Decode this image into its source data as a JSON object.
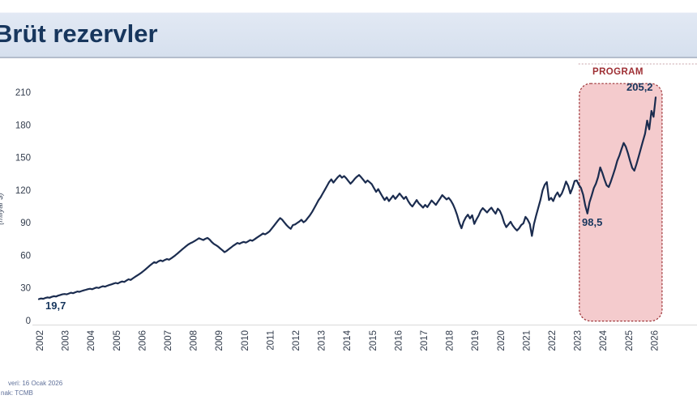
{
  "header": {
    "title": "Brüt rezervler"
  },
  "annotations": {
    "start_value": "19,7",
    "dip_value": "98,5",
    "last_value": "205,2",
    "program_label": "PROGRAM"
  },
  "footer": {
    "line1": "veri: 16 Ocak 2026",
    "line2": "nak: TCMB"
  },
  "colors": {
    "navy": "#17365d",
    "line": "#1b2c4f",
    "region_fill": "#f4cbcd",
    "region_border": "#9c3236",
    "program_text": "#9e2f34",
    "axis_text": "#333d4d",
    "axis_line": "#d9d9d9",
    "footer_text": "#60719a",
    "guide_dots": "#d4b6ba",
    "header_bg": "#d9e2f0"
  },
  "chart_data": {
    "type": "line",
    "title": "Brüt rezervler",
    "xlabel": "",
    "ylabel": "(milyar $)",
    "ylim": [
      0,
      210
    ],
    "y_ticks": [
      0,
      30,
      60,
      90,
      120,
      150,
      180,
      210
    ],
    "x_ticks": [
      "2002",
      "2003",
      "2004",
      "2005",
      "2006",
      "2007",
      "2008",
      "2009",
      "2010",
      "2011",
      "2012",
      "2013",
      "2014",
      "2015",
      "2016",
      "2017",
      "2018",
      "2019",
      "2020",
      "2021",
      "2022",
      "2023",
      "2024",
      "2025",
      "2026"
    ],
    "grid": false,
    "legend": "none",
    "program_region": {
      "label": "PROGRAM",
      "x_from": 2023.1,
      "x_to": 2026.33,
      "value_top": 218,
      "value_bottom": -0.5
    },
    "point_labels": [
      {
        "x": 2002.0,
        "value": 19.7,
        "label": "19,7"
      },
      {
        "x": 2023.42,
        "value": 98.5,
        "label": "98,5"
      },
      {
        "x": 2026.08,
        "value": 205.2,
        "label": "205,2"
      }
    ],
    "series": [
      {
        "name": "Brüt rezervler (milyar $)",
        "x_start": 2002.0,
        "x_step": 0.083333,
        "values": [
          19.7,
          20.3,
          20.0,
          20.8,
          21.3,
          21.0,
          21.8,
          22.4,
          22.1,
          22.9,
          23.5,
          24.1,
          24.4,
          24.1,
          24.9,
          25.6,
          25.2,
          26.0,
          26.7,
          26.4,
          27.2,
          27.8,
          28.3,
          28.9,
          29.3,
          28.8,
          29.7,
          30.4,
          30.0,
          30.9,
          31.6,
          31.2,
          32.0,
          32.7,
          33.3,
          34.0,
          34.6,
          34.1,
          35.2,
          36.0,
          35.5,
          36.8,
          38.0,
          37.4,
          38.8,
          40.1,
          41.4,
          42.7,
          44.0,
          45.6,
          47.2,
          48.9,
          50.6,
          52.2,
          53.8,
          53.0,
          54.5,
          55.3,
          54.6,
          55.8,
          56.6,
          56.0,
          57.3,
          58.7,
          60.2,
          61.8,
          63.5,
          65.2,
          66.9,
          68.5,
          70.0,
          71.2,
          72.1,
          73.2,
          74.5,
          75.7,
          74.9,
          74.1,
          75.2,
          76.0,
          74.5,
          72.2,
          70.5,
          69.3,
          68.0,
          66.3,
          64.6,
          62.9,
          64.1,
          65.7,
          67.2,
          68.7,
          70.1,
          71.4,
          70.7,
          71.7,
          72.4,
          71.7,
          72.8,
          74.1,
          73.4,
          74.7,
          76.1,
          77.4,
          78.7,
          80.1,
          79.3,
          80.6,
          82.0,
          84.4,
          86.9,
          89.4,
          91.9,
          94.3,
          92.8,
          90.3,
          87.9,
          85.9,
          84.4,
          87.9,
          88.4,
          89.7,
          91.1,
          92.7,
          90.4,
          91.9,
          94.4,
          96.9,
          99.9,
          103.4,
          106.9,
          110.7,
          113.4,
          116.9,
          120.4,
          123.9,
          127.4,
          129.9,
          126.9,
          129.4,
          131.9,
          133.7,
          131.4,
          132.9,
          130.9,
          128.4,
          125.9,
          127.9,
          130.4,
          132.4,
          133.9,
          131.9,
          129.4,
          126.9,
          128.9,
          127.2,
          125.4,
          121.9,
          118.4,
          120.9,
          117.4,
          113.9,
          110.9,
          113.4,
          109.9,
          112.4,
          114.9,
          111.9,
          114.4,
          116.9,
          114.4,
          111.9,
          113.9,
          109.9,
          106.9,
          104.9,
          107.9,
          110.9,
          107.9,
          105.9,
          103.9,
          106.4,
          104.4,
          107.4,
          110.4,
          108.4,
          106.4,
          109.4,
          112.4,
          115.4,
          113.4,
          111.4,
          112.9,
          110.4,
          106.9,
          102.4,
          96.9,
          89.9,
          84.9,
          90.9,
          94.9,
          97.4,
          93.9,
          96.9,
          88.9,
          92.9,
          96.4,
          100.9,
          103.4,
          101.4,
          99.4,
          101.9,
          103.9,
          100.9,
          98.4,
          102.9,
          100.9,
          96.4,
          89.9,
          85.9,
          88.4,
          90.9,
          87.4,
          84.9,
          82.9,
          84.9,
          87.9,
          89.4,
          95.4,
          92.9,
          88.9,
          77.9,
          88.9,
          96.9,
          103.9,
          110.9,
          119.9,
          124.9,
          127.4,
          110.9,
          112.9,
          109.9,
          114.9,
          117.9,
          113.9,
          116.9,
          121.9,
          127.9,
          123.9,
          116.9,
          121.9,
          128.4,
          128.9,
          124.9,
          121.9,
          115.9,
          105.9,
          98.5,
          108.9,
          114.9,
          121.9,
          125.9,
          131.9,
          140.9,
          135.9,
          129.9,
          124.4,
          122.9,
          127.9,
          133.9,
          139.9,
          146.9,
          151.9,
          157.9,
          163.4,
          159.9,
          153.9,
          146.9,
          140.4,
          137.9,
          143.9,
          150.9,
          157.9,
          164.9,
          171.9,
          183.9,
          175.9,
          192.9,
          187.4,
          205.2
        ]
      }
    ]
  }
}
